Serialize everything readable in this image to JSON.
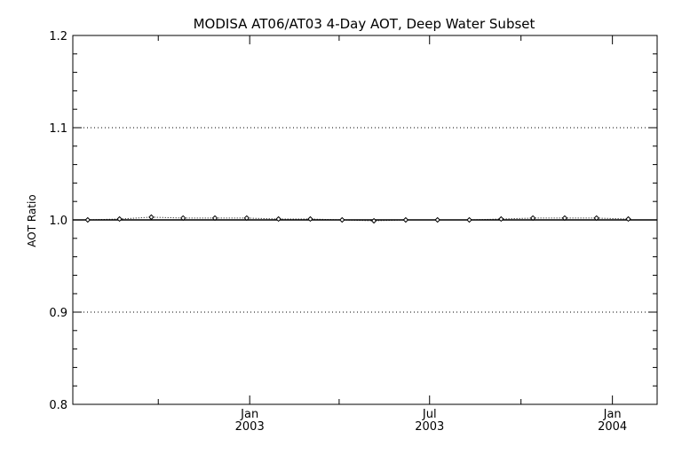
{
  "chart_data": {
    "type": "line",
    "title": "MODISA AT06/AT03 4-Day AOT, Deep Water Subset",
    "xlabel": "",
    "ylabel": "AOT Ratio",
    "ylim": [
      0.8,
      1.2
    ],
    "xlim": [
      "2002-07-07",
      "2004-02-15"
    ],
    "y_ticks": [
      {
        "value": 0.8,
        "label": "0.8"
      },
      {
        "value": 0.9,
        "label": "0.9"
      },
      {
        "value": 1.0,
        "label": "1.0"
      },
      {
        "value": 1.1,
        "label": "1.1"
      },
      {
        "value": 1.2,
        "label": "1.2"
      }
    ],
    "x_ticks": [
      {
        "date": "2003-01-01",
        "month": "Jan",
        "year": "2003"
      },
      {
        "date": "2003-07-01",
        "month": "Jul",
        "year": "2003"
      },
      {
        "date": "2004-01-01",
        "month": "Jan",
        "year": "2004"
      }
    ],
    "x_minor_ticks": [
      "2002-10-01",
      "2003-04-01",
      "2003-10-01"
    ],
    "grid_y": [
      0.9,
      1.0,
      1.1
    ],
    "reference_line": 1.0,
    "series": [
      {
        "x": [
          "2002-07-22",
          "2002-08-23",
          "2002-09-24",
          "2002-10-26",
          "2002-11-27",
          "2002-12-29",
          "2003-01-30",
          "2003-03-03",
          "2003-04-04",
          "2003-05-06",
          "2003-06-07",
          "2003-07-09",
          "2003-08-10",
          "2003-09-11",
          "2003-10-13",
          "2003-11-14",
          "2003-12-16",
          "2004-01-17"
        ],
        "y": [
          1.0,
          1.001,
          1.003,
          1.002,
          1.002,
          1.002,
          1.001,
          1.001,
          1.0,
          0.999,
          1.0,
          1.0,
          1.0,
          1.001,
          1.002,
          1.002,
          1.002,
          1.001
        ]
      }
    ]
  }
}
